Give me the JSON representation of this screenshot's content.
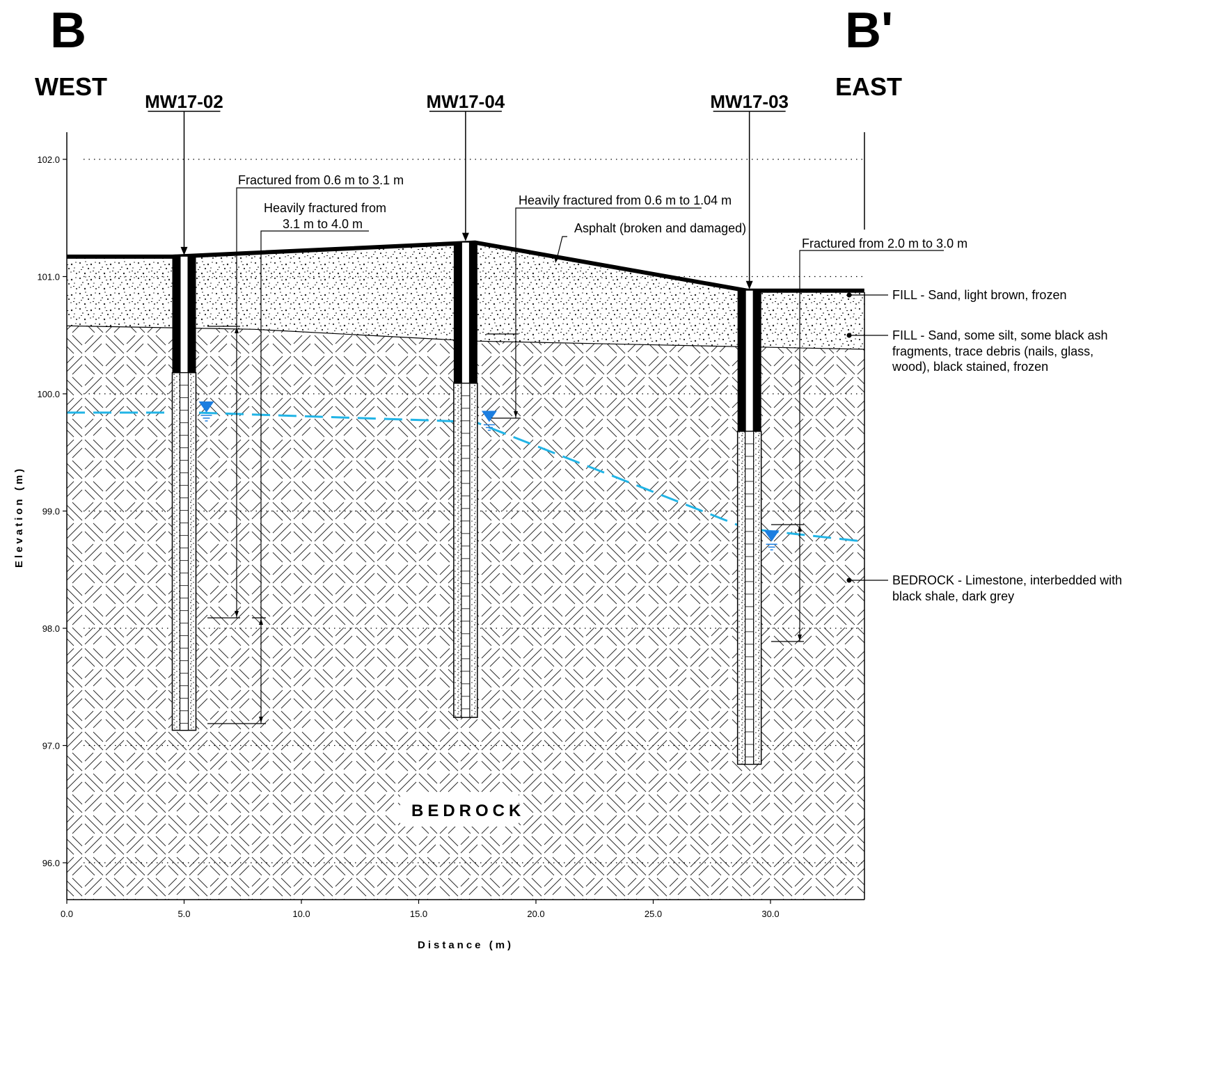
{
  "section": {
    "start_label": "B",
    "end_label": "B'",
    "west_label": "WEST",
    "east_label": "EAST"
  },
  "axes": {
    "ylabel": "Elevation (m)",
    "xlabel": "Distance (m)",
    "y_range": [
      95.7,
      102.3
    ],
    "x_range": [
      0,
      34
    ],
    "y_ticks": [
      "96.0",
      "97.0",
      "98.0",
      "99.0",
      "100.0",
      "101.0",
      "102.0"
    ],
    "y_tick_values": [
      96,
      97,
      98,
      99,
      100,
      101,
      102
    ],
    "x_ticks": [
      "0.0",
      "5.0",
      "10.0",
      "15.0",
      "20.0",
      "25.0",
      "30.0"
    ],
    "x_tick_values": [
      0,
      5,
      10,
      15,
      20,
      25,
      30
    ]
  },
  "surface": {
    "ground": [
      [
        0,
        101.17
      ],
      [
        4.5,
        101.17
      ],
      [
        17.4,
        101.29
      ],
      [
        29,
        100.88
      ],
      [
        34,
        100.88
      ]
    ],
    "fill_base": [
      [
        0,
        100.58
      ],
      [
        8,
        100.55
      ],
      [
        17.4,
        100.45
      ],
      [
        34,
        100.38
      ]
    ],
    "water_table": [
      [
        0,
        99.84
      ],
      [
        5.5,
        99.84
      ],
      [
        17.4,
        99.76
      ],
      [
        29,
        98.85
      ],
      [
        34,
        98.74
      ]
    ]
  },
  "wells": [
    {
      "name": "MW17-02",
      "x": 5.0,
      "top": 101.17,
      "solid_bottom": 100.18,
      "bottom": 97.13,
      "water_level": 99.84
    },
    {
      "name": "MW17-04",
      "x": 17.0,
      "top": 101.29,
      "solid_bottom": 100.09,
      "bottom": 97.24,
      "water_level": 99.76
    },
    {
      "name": "MW17-03",
      "x": 29.1,
      "top": 100.88,
      "solid_bottom": 99.68,
      "bottom": 96.84,
      "water_level": 98.74
    }
  ],
  "annotations": {
    "fractured_02": "Fractured from 0.6 m to 3.1 m",
    "heavily_02_line1": "Heavily fractured from",
    "heavily_02_line2": "3.1 m to 4.0 m",
    "heavily_04": "Heavily fractured from 0.6 m to 1.04 m",
    "asphalt": "Asphalt (broken and damaged)",
    "fractured_03": "Fractured from 2.0 m to 3.0 m"
  },
  "legend": {
    "fill1": "FILL - Sand, light brown, frozen",
    "fill2_line1": "FILL - Sand, some silt, some black ash",
    "fill2_line2": "fragments, trace debris (nails, glass,",
    "fill2_line3": "wood), black stained, frozen",
    "bedrock_line1": "BEDROCK - Limestone, interbedded with",
    "bedrock_line2": "black shale, dark grey"
  },
  "unit_label": "BEDROCK",
  "colors": {
    "water": "#21b4e6",
    "water_symbol": "#1c7ee0",
    "ink": "#000000"
  }
}
